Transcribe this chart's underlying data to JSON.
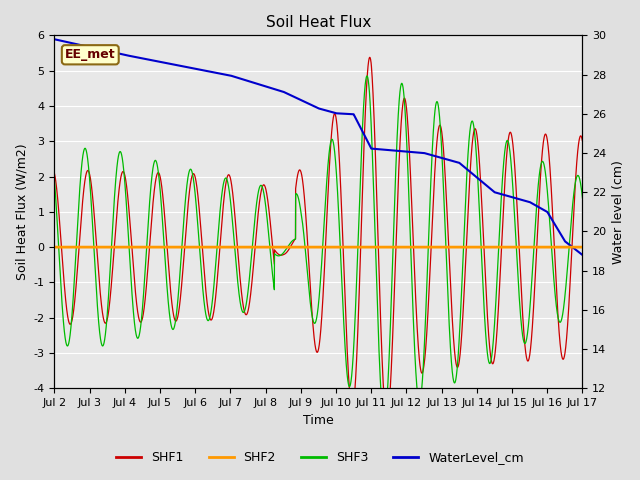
{
  "title": "Soil Heat Flux",
  "ylabel_left": "Soil Heat Flux (W/m2)",
  "ylabel_right": "Water level (cm)",
  "xlabel": "Time",
  "ylim_left": [
    -4.0,
    6.0
  ],
  "ylim_right": [
    12,
    30
  ],
  "yticks_left": [
    -4.0,
    -3.0,
    -2.0,
    -1.0,
    0.0,
    1.0,
    2.0,
    3.0,
    4.0,
    5.0,
    6.0
  ],
  "yticks_right": [
    12,
    14,
    16,
    18,
    20,
    22,
    24,
    26,
    28,
    30
  ],
  "xtick_labels": [
    "Jul 2",
    "Jul 3",
    "Jul 4",
    "Jul 5",
    "Jul 6",
    "Jul 7",
    "Jul 8",
    "Jul 9",
    "Jul 10",
    "Jul 11",
    "Jul 12",
    "Jul 13",
    "Jul 14",
    "Jul 15",
    "Jul 16",
    "Jul 17"
  ],
  "background_color": "#e0e0e0",
  "plot_bg_color": "#e8e8e8",
  "grid_color": "#ffffff",
  "annotation_text": "EE_met",
  "annotation_bg": "#ffffcc",
  "annotation_border": "#8B6914",
  "shf1_color": "#cc0000",
  "shf2_color": "#ff9900",
  "shf3_color": "#00bb00",
  "water_color": "#0000cc",
  "legend_labels": [
    "SHF1",
    "SHF2",
    "SHF3",
    "WaterLevel_cm"
  ],
  "figsize": [
    6.4,
    4.8
  ],
  "dpi": 100
}
